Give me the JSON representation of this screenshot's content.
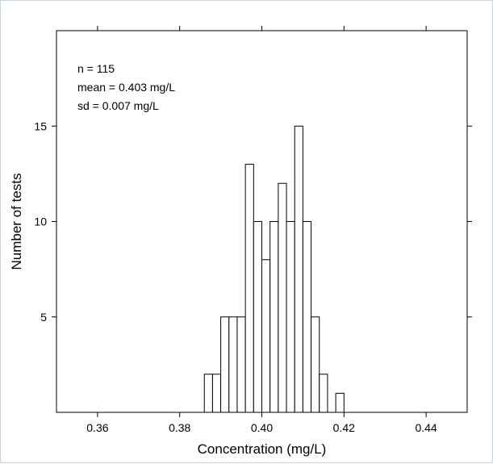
{
  "chart_data": {
    "type": "histogram",
    "xlabel": "Concentration (mg/L)",
    "ylabel": "Number of tests",
    "xlim": [
      0.35,
      0.45
    ],
    "ylim": [
      0,
      20
    ],
    "xticks": [
      0.36,
      0.38,
      0.4,
      0.42,
      0.44
    ],
    "xtick_labels": [
      "0.36",
      "0.38",
      "0.40",
      "0.42",
      "0.44"
    ],
    "yticks": [
      5,
      10,
      15
    ],
    "ytick_labels": [
      "5",
      "10",
      "15"
    ],
    "bin_width": 0.002,
    "bins": [
      {
        "start": 0.386,
        "count": 2
      },
      {
        "start": 0.388,
        "count": 2
      },
      {
        "start": 0.39,
        "count": 5
      },
      {
        "start": 0.392,
        "count": 5
      },
      {
        "start": 0.394,
        "count": 5
      },
      {
        "start": 0.396,
        "count": 13
      },
      {
        "start": 0.398,
        "count": 10
      },
      {
        "start": 0.4,
        "count": 8
      },
      {
        "start": 0.402,
        "count": 10
      },
      {
        "start": 0.404,
        "count": 12
      },
      {
        "start": 0.406,
        "count": 10
      },
      {
        "start": 0.408,
        "count": 15
      },
      {
        "start": 0.41,
        "count": 10
      },
      {
        "start": 0.412,
        "count": 5
      },
      {
        "start": 0.414,
        "count": 2
      },
      {
        "start": 0.416,
        "count": 0
      },
      {
        "start": 0.418,
        "count": 1
      }
    ],
    "annotations": [
      "n = 115",
      "mean = 0.403  mg/L",
      "sd = 0.007  mg/L"
    ],
    "grid": false
  }
}
